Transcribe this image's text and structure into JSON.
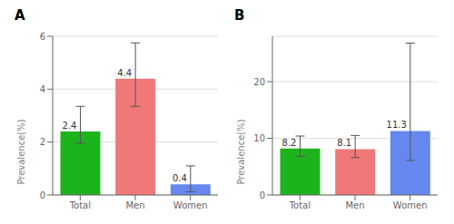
{
  "chart_data": [
    {
      "type": "bar",
      "title": "A",
      "ylabel": "Prevalence(%)",
      "categories": [
        "Total",
        "Men",
        "Women"
      ],
      "values": [
        2.4,
        4.4,
        0.4
      ],
      "errors_upper": [
        0.95,
        1.35,
        0.7
      ],
      "errors_lower": [
        0.45,
        1.05,
        0.28
      ],
      "colors": [
        "#1db31d",
        "#f07878",
        "#6688ee"
      ],
      "ylim": [
        0,
        6
      ],
      "yticks": [
        0,
        2,
        4,
        6
      ],
      "grid": true,
      "data_labels": true
    },
    {
      "type": "bar",
      "title": "B",
      "ylabel": "Prevalence(%)",
      "categories": [
        "Total",
        "Men",
        "Women"
      ],
      "values": [
        8.2,
        8.1,
        11.3
      ],
      "errors_upper": [
        2.2,
        2.4,
        15.5
      ],
      "errors_lower": [
        1.4,
        1.5,
        5.2
      ],
      "colors": [
        "#1db31d",
        "#f07878",
        "#6688ee"
      ],
      "ylim": [
        0,
        28
      ],
      "yticks": [
        0,
        10,
        20
      ],
      "grid": true,
      "data_labels": true
    }
  ]
}
